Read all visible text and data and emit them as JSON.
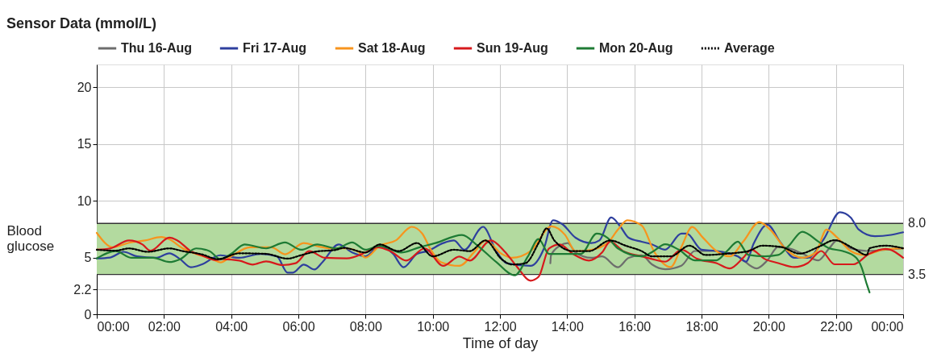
{
  "chart_data": {
    "type": "line",
    "title": "Sensor Data (mmol/L)",
    "xlabel": "Time of day",
    "ylabel": "Blood glucose",
    "xlim": [
      0,
      24
    ],
    "ylim": [
      0,
      22
    ],
    "xticks": [
      {
        "value": 0,
        "label": "00:00"
      },
      {
        "value": 2,
        "label": "02:00"
      },
      {
        "value": 4,
        "label": "04:00"
      },
      {
        "value": 6,
        "label": "06:00"
      },
      {
        "value": 8,
        "label": "08:00"
      },
      {
        "value": 10,
        "label": "10:00"
      },
      {
        "value": 12,
        "label": "12:00"
      },
      {
        "value": 14,
        "label": "14:00"
      },
      {
        "value": 16,
        "label": "16:00"
      },
      {
        "value": 18,
        "label": "18:00"
      },
      {
        "value": 20,
        "label": "20:00"
      },
      {
        "value": 22,
        "label": "22:00"
      },
      {
        "value": 24,
        "label": "00:00"
      }
    ],
    "yticks": [
      0,
      2.2,
      5,
      10,
      15,
      20
    ],
    "grid": true,
    "legend": "top",
    "marker": "none",
    "bands": [
      {
        "axis": "y",
        "from": 3.5,
        "to": 8.0,
        "color": "#b3da9f"
      }
    ],
    "ref_lines": [
      {
        "axis": "y",
        "value": 8.0,
        "label": "8.0",
        "color": "#333333"
      },
      {
        "axis": "y",
        "value": 3.5,
        "label": "3.5",
        "color": "#333333"
      }
    ],
    "series": [
      {
        "name": "Thu 16-Aug",
        "color": "#6d6d6d",
        "line_style": "solid",
        "x": [
          13.5,
          13.52,
          13.78,
          14.02,
          14.25,
          14.72,
          15.04,
          15.51,
          15.83,
          16.22,
          16.52,
          16.92,
          17.4,
          17.8,
          18.36,
          19.08,
          19.64,
          19.96,
          20.28,
          20.6,
          21.0,
          21.48,
          21.8,
          22.04,
          22.44,
          22.92,
          23.48,
          24.0
        ],
        "values": [
          4.5,
          5.2,
          6.03,
          6.27,
          5.44,
          4.97,
          5.1,
          4.14,
          4.97,
          5.2,
          4.4,
          3.97,
          4.28,
          5.57,
          5.57,
          5.1,
          4.04,
          4.75,
          5.93,
          5.81,
          5.34,
          4.75,
          5.81,
          6.52,
          5.81,
          5.57,
          5.69,
          5.81
        ]
      },
      {
        "name": "Fri 17-Aug",
        "color": "#2e3f9e",
        "line_style": "solid",
        "x": [
          0,
          0.4,
          0.8,
          1.2,
          1.76,
          2.16,
          2.48,
          2.8,
          3.12,
          3.68,
          4.24,
          4.88,
          5.36,
          5.68,
          5.84,
          6.16,
          6.48,
          6.72,
          7.2,
          7.6,
          8.0,
          8.42,
          8.82,
          9.13,
          9.53,
          9.84,
          10.31,
          10.63,
          10.94,
          11.5,
          11.89,
          12.2,
          12.91,
          13.31,
          13.58,
          13.86,
          14.25,
          14.72,
          14.96,
          15.31,
          15.59,
          15.83,
          16.22,
          16.52,
          16.92,
          17.4,
          17.56,
          18.0,
          18.44,
          19.08,
          19.32,
          19.56,
          19.96,
          20.36,
          20.76,
          21.16,
          21.64,
          22.12,
          22.44,
          22.68,
          23.16,
          23.64,
          24.0
        ],
        "values": [
          4.92,
          5.0,
          5.5,
          5.1,
          4.97,
          5.37,
          4.85,
          4.14,
          4.38,
          5.2,
          4.97,
          5.32,
          5.1,
          3.67,
          3.67,
          4.38,
          3.95,
          4.6,
          6.15,
          5.44,
          5.1,
          6.03,
          5.32,
          4.14,
          5.32,
          5.56,
          6.27,
          6.5,
          5.68,
          7.7,
          5.56,
          4.5,
          4.26,
          5.8,
          8.28,
          7.93,
          6.74,
          6.27,
          6.5,
          8.52,
          7.7,
          6.74,
          6.39,
          6.16,
          5.69,
          7.1,
          7.1,
          5.69,
          5.57,
          5.1,
          4.63,
          6.28,
          7.88,
          6.28,
          4.98,
          4.98,
          6.63,
          8.99,
          8.52,
          7.46,
          6.87,
          6.99,
          7.22
        ]
      },
      {
        "name": "Sat 18-Aug",
        "color": "#f7941d",
        "line_style": "solid",
        "x": [
          0,
          0.48,
          0.96,
          1.44,
          1.92,
          2.16,
          2.56,
          2.96,
          3.44,
          3.68,
          4.0,
          4.56,
          5.2,
          5.6,
          6.16,
          6.56,
          6.96,
          7.44,
          7.76,
          8.0,
          8.42,
          8.9,
          9.37,
          9.69,
          9.92,
          10.24,
          10.79,
          11.26,
          11.57,
          12.05,
          12.36,
          12.91,
          13.54,
          13.94,
          14.25,
          14.72,
          15.2,
          15.51,
          15.79,
          16.22,
          16.6,
          17.08,
          17.4,
          17.72,
          18.04,
          18.44,
          18.84,
          19.24,
          19.72,
          20.04,
          20.52,
          21.0,
          21.4,
          21.72,
          22.04,
          22.44,
          22.84,
          23.4,
          24.0
        ],
        "values": [
          7.17,
          5.9,
          6.3,
          6.5,
          6.8,
          6.6,
          5.8,
          5.3,
          4.85,
          4.57,
          5.1,
          5.9,
          5.9,
          5.28,
          6.27,
          6.0,
          5.8,
          5.8,
          5.56,
          5.0,
          6.03,
          6.5,
          7.7,
          7.1,
          5.8,
          4.6,
          4.26,
          5.56,
          6.5,
          5.32,
          4.97,
          5.56,
          7.74,
          6.98,
          5.56,
          5.68,
          6.27,
          7.45,
          8.28,
          7.81,
          5.46,
          4.16,
          5.93,
          7.69,
          6.75,
          5.57,
          5.1,
          6.4,
          8.12,
          7.46,
          5.69,
          4.98,
          5.46,
          7.46,
          6.75,
          5.57,
          5.22,
          5.69,
          5.81
        ]
      },
      {
        "name": "Sun 19-Aug",
        "color": "#d7191c",
        "line_style": "solid",
        "x": [
          0,
          0.4,
          0.96,
          1.36,
          1.6,
          2.16,
          2.4,
          2.8,
          3.12,
          3.52,
          3.76,
          4.24,
          4.64,
          5.04,
          5.52,
          5.92,
          6.32,
          6.8,
          7.44,
          8.0,
          8.35,
          8.74,
          9.21,
          9.76,
          10.31,
          10.79,
          11.1,
          11.73,
          12.13,
          12.52,
          12.91,
          13.15,
          13.46,
          13.78,
          14.17,
          14.65,
          15.04,
          15.28,
          15.67,
          16.22,
          16.52,
          16.92,
          17.4,
          17.88,
          18.44,
          18.84,
          19.24,
          19.48,
          19.88,
          20.28,
          20.76,
          21.16,
          21.56,
          21.96,
          22.52,
          23.0,
          23.48,
          24.0
        ],
        "values": [
          5.68,
          5.8,
          6.5,
          6.15,
          5.6,
          6.75,
          6.5,
          5.56,
          5.2,
          4.78,
          4.85,
          4.73,
          4.38,
          4.66,
          4.33,
          4.5,
          5.56,
          4.97,
          4.92,
          5.44,
          5.9,
          5.56,
          4.73,
          5.8,
          4.26,
          5.08,
          4.73,
          6.5,
          5.56,
          4.14,
          2.96,
          3.3,
          5.8,
          6.15,
          5.32,
          4.73,
          5.44,
          6.39,
          5.56,
          5.1,
          4.87,
          4.63,
          5.69,
          4.87,
          4.51,
          4.04,
          4.98,
          5.69,
          4.87,
          4.51,
          4.16,
          4.51,
          5.57,
          4.4,
          4.4,
          5.34,
          5.76,
          4.98
        ]
      },
      {
        "name": "Mon 20-Aug",
        "color": "#1e7b34",
        "line_style": "solid",
        "x": [
          0,
          0.56,
          1.04,
          1.68,
          2.16,
          2.48,
          2.96,
          3.36,
          3.68,
          4.0,
          4.4,
          5.04,
          5.6,
          6.08,
          6.56,
          7.12,
          7.6,
          8.0,
          8.42,
          9.06,
          9.61,
          10.08,
          10.87,
          11.34,
          11.89,
          12.44,
          12.83,
          13.15,
          13.46,
          13.94,
          14.41,
          14.88,
          15.2,
          15.51,
          16.22,
          16.52,
          16.92,
          17.32,
          17.8,
          18.44,
          18.76,
          19.08,
          19.4,
          19.88,
          20.28,
          20.6,
          21.0,
          21.48,
          21.8,
          22.2,
          22.6,
          22.76,
          22.92,
          23.0
        ],
        "values": [
          4.92,
          5.56,
          4.97,
          4.97,
          4.6,
          4.85,
          5.8,
          5.56,
          4.85,
          5.32,
          6.15,
          5.8,
          6.32,
          5.68,
          6.15,
          5.8,
          6.32,
          5.68,
          6.03,
          5.44,
          5.9,
          6.27,
          6.98,
          6.03,
          4.6,
          3.43,
          5.08,
          6.63,
          5.32,
          5.32,
          5.32,
          7.1,
          6.74,
          5.8,
          5.1,
          5.46,
          6.16,
          5.69,
          4.75,
          4.75,
          5.57,
          6.4,
          5.22,
          5.1,
          5.22,
          6.04,
          7.27,
          6.4,
          5.81,
          5.57,
          4.98,
          4.16,
          2.63,
          1.92
        ]
      },
      {
        "name": "Average",
        "color": "#000000",
        "line_style": "dotted",
        "x": [
          0,
          0.56,
          0.96,
          1.52,
          2.16,
          2.56,
          3.12,
          3.6,
          4.24,
          5.04,
          5.68,
          6.08,
          6.48,
          7.12,
          7.36,
          8.0,
          8.42,
          8.98,
          9.53,
          10.0,
          10.63,
          11.1,
          11.57,
          12.05,
          12.36,
          12.76,
          13.15,
          13.39,
          13.62,
          14.17,
          14.65,
          15.28,
          15.75,
          16.22,
          16.52,
          17.08,
          17.64,
          18.12,
          18.76,
          19.4,
          19.8,
          20.36,
          20.92,
          21.48,
          21.96,
          22.52,
          22.92,
          23.0,
          23.48,
          24.0
        ],
        "values": [
          5.68,
          5.6,
          5.8,
          5.5,
          5.8,
          5.56,
          5.28,
          4.85,
          5.37,
          5.32,
          4.9,
          5.2,
          5.5,
          5.68,
          5.84,
          5.44,
          6.15,
          5.56,
          6.27,
          5.1,
          5.68,
          5.56,
          6.5,
          4.85,
          4.38,
          4.5,
          6.27,
          7.57,
          6.5,
          5.56,
          5.56,
          6.5,
          6.03,
          5.56,
          5.1,
          5.1,
          6.04,
          5.22,
          5.34,
          5.57,
          6.04,
          5.93,
          5.34,
          5.93,
          6.52,
          5.81,
          5.22,
          5.81,
          6.04,
          5.81
        ]
      }
    ]
  }
}
